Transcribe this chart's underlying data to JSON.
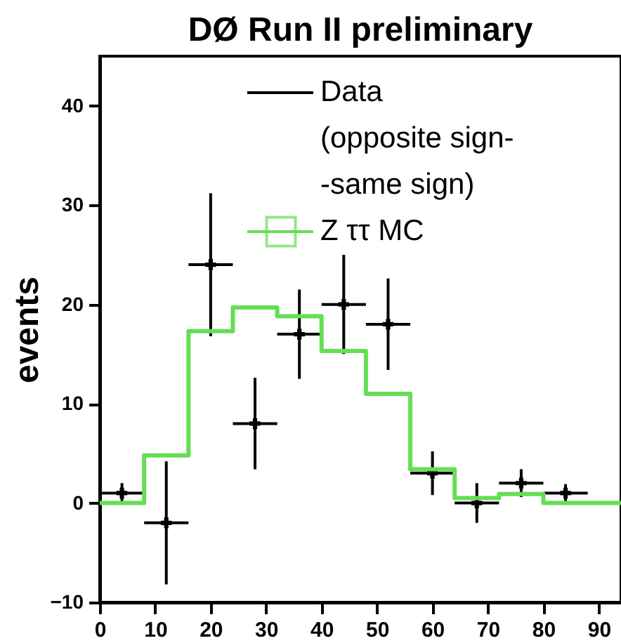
{
  "chart_data": {
    "type": "scatter",
    "title": "DØ Run II preliminary",
    "ylabel": "events",
    "xlim": [
      0,
      94
    ],
    "xticks": [
      0,
      10,
      20,
      30,
      40,
      50,
      60,
      70,
      80,
      90
    ],
    "ylim": [
      -10,
      45
    ],
    "yticks": [
      -10,
      0,
      10,
      20,
      30,
      40
    ],
    "grid": false,
    "legend": "top right",
    "marker": "cross",
    "series": [
      {
        "name": "Data\n(opposite sign-\n-same sign)",
        "color": "#000000",
        "x": [
          4,
          12,
          20,
          28,
          36,
          44,
          52,
          60,
          68,
          76,
          84
        ],
        "values": [
          1,
          -2,
          24,
          8,
          17,
          20,
          18,
          3,
          0,
          2,
          1
        ],
        "errors": [
          1,
          6.2,
          7.2,
          4.6,
          4.5,
          5,
          4.6,
          2.2,
          2,
          1.4,
          0.9
        ],
        "xerrors": [
          4,
          4,
          4,
          4,
          4,
          4,
          4,
          4,
          4,
          4,
          4
        ]
      },
      {
        "name": "Z ττ MC",
        "type": "histogram",
        "color": "#66dd55",
        "bins": [
          0,
          8,
          16,
          24,
          32,
          40,
          48,
          56,
          64,
          72,
          80,
          88,
          96
        ],
        "values": [
          0,
          4.8,
          17.3,
          19.7,
          18.8,
          15.3,
          11.0,
          3.4,
          0.5,
          0.9,
          0,
          0
        ],
        "marker": "square"
      }
    ]
  }
}
